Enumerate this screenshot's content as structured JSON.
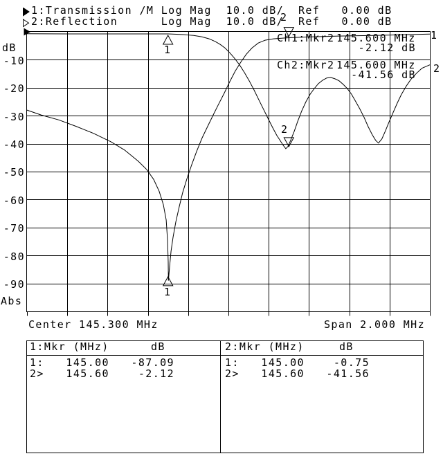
{
  "colors": {
    "fg": "#000000",
    "bg": "#ffffff"
  },
  "header": {
    "line1": {
      "icon": "filled-right-triangle",
      "text": "1:Transmission /M Log Mag  10.0 dB/  Ref   0.00 dB"
    },
    "line2": {
      "icon": "hollow-right-triangle",
      "text": "2:Reflection      Log Mag  10.0 dB/  Ref   0.00 dB"
    }
  },
  "y_axis": {
    "unit": "dB",
    "abs": "Abs",
    "ticks": [
      "-10",
      "-20",
      "-30",
      "-40",
      "-50",
      "-60",
      "-70",
      "-80",
      "-90"
    ]
  },
  "readout": {
    "rows": [
      {
        "ch": "Ch1:Mkr2",
        "freq": "145.600 MHz",
        "value": "-2.12 dB"
      },
      {
        "ch": "Ch2:Mkr2",
        "freq": "145.600 MHz",
        "value": "-41.56 dB"
      }
    ]
  },
  "trace_end_labels": {
    "trace1": "1",
    "trace2": "2"
  },
  "footer": {
    "center": "Center 145.300 MHz",
    "span": "Span 2.000 MHz"
  },
  "marker_table": {
    "left": {
      "title": "1:Mkr (MHz)",
      "unit": "dB",
      "rows": [
        [
          "1:",
          "145.00",
          "-87.09"
        ],
        [
          "2>",
          "145.60",
          "-2.12"
        ]
      ]
    },
    "right": {
      "title": "2:Mkr (MHz)",
      "unit": "dB",
      "rows": [
        [
          "1:",
          "145.00",
          "-0.75"
        ],
        [
          "2>",
          "145.60",
          "-41.56"
        ]
      ]
    }
  },
  "chart_data": {
    "type": "line",
    "title": "Transmission / Reflection Log Mag",
    "x_center_mhz": 145.3,
    "x_span_mhz": 2.0,
    "x_range_mhz": [
      144.3,
      146.3
    ],
    "y_ref_db": 0.0,
    "y_scale_db_per_div": 10.0,
    "y_range_db": [
      0,
      -100
    ],
    "grid": {
      "x_divs": 10,
      "y_divs": 10,
      "grid_on": true
    },
    "series": [
      {
        "name": "Transmission",
        "channel": 1,
        "points": [
          [
            144.3,
            -28.0
          ],
          [
            144.372,
            -29.8
          ],
          [
            144.458,
            -31.5
          ],
          [
            144.544,
            -33.8
          ],
          [
            144.63,
            -36.3
          ],
          [
            144.716,
            -39.3
          ],
          [
            144.785,
            -42.3
          ],
          [
            144.853,
            -46.3
          ],
          [
            144.895,
            -49.3
          ],
          [
            144.929,
            -52.8
          ],
          [
            144.956,
            -57.0
          ],
          [
            144.977,
            -61.8
          ],
          [
            144.991,
            -67.3
          ],
          [
            144.998,
            -74.8
          ],
          [
            145.001,
            -82.3
          ],
          [
            145.002,
            -89.0
          ],
          [
            145.008,
            -84.0
          ],
          [
            145.015,
            -78.5
          ],
          [
            145.025,
            -73.5
          ],
          [
            145.039,
            -68.0
          ],
          [
            145.056,
            -62.5
          ],
          [
            145.073,
            -57.5
          ],
          [
            145.094,
            -52.5
          ],
          [
            145.118,
            -47.5
          ],
          [
            145.142,
            -42.8
          ],
          [
            145.169,
            -38.0
          ],
          [
            145.197,
            -33.8
          ],
          [
            145.224,
            -29.8
          ],
          [
            145.252,
            -25.8
          ],
          [
            145.28,
            -21.8
          ],
          [
            145.307,
            -17.8
          ],
          [
            145.334,
            -14.0
          ],
          [
            145.362,
            -10.8
          ],
          [
            145.389,
            -8.0
          ],
          [
            145.417,
            -5.8
          ],
          [
            145.448,
            -4.0
          ],
          [
            145.482,
            -3.0
          ],
          [
            145.523,
            -2.5
          ],
          [
            145.599,
            -2.1
          ],
          [
            145.712,
            -1.8
          ],
          [
            145.849,
            -1.5
          ],
          [
            146.021,
            -1.3
          ],
          [
            146.193,
            -1.0
          ],
          [
            146.3,
            -0.8
          ]
        ]
      },
      {
        "name": "Reflection",
        "channel": 2,
        "points": [
          [
            144.3,
            -0.7
          ],
          [
            144.5,
            -0.75
          ],
          [
            144.7,
            -0.75
          ],
          [
            144.9,
            -0.75
          ],
          [
            145.001,
            -0.75
          ],
          [
            145.077,
            -1.0
          ],
          [
            145.128,
            -1.3
          ],
          [
            145.169,
            -1.8
          ],
          [
            145.204,
            -2.5
          ],
          [
            145.235,
            -3.5
          ],
          [
            145.259,
            -4.5
          ],
          [
            145.283,
            -5.8
          ],
          [
            145.307,
            -7.5
          ],
          [
            145.331,
            -9.5
          ],
          [
            145.355,
            -11.8
          ],
          [
            145.379,
            -14.5
          ],
          [
            145.403,
            -17.5
          ],
          [
            145.427,
            -20.8
          ],
          [
            145.451,
            -24.3
          ],
          [
            145.475,
            -27.8
          ],
          [
            145.499,
            -31.3
          ],
          [
            145.52,
            -34.3
          ],
          [
            145.54,
            -37.0
          ],
          [
            145.558,
            -39.0
          ],
          [
            145.571,
            -40.5
          ],
          [
            145.585,
            -41.8
          ],
          [
            145.596,
            -41.0
          ],
          [
            145.609,
            -38.8
          ],
          [
            145.627,
            -35.5
          ],
          [
            145.644,
            -32.0
          ],
          [
            145.664,
            -28.3
          ],
          [
            145.685,
            -25.0
          ],
          [
            145.706,
            -22.3
          ],
          [
            145.726,
            -20.3
          ],
          [
            145.747,
            -18.5
          ],
          [
            145.768,
            -17.3
          ],
          [
            145.788,
            -16.5
          ],
          [
            145.808,
            -16.3
          ],
          [
            145.829,
            -16.8
          ],
          [
            145.849,
            -17.5
          ],
          [
            145.87,
            -18.8
          ],
          [
            145.89,
            -20.3
          ],
          [
            145.911,
            -22.3
          ],
          [
            145.931,
            -24.8
          ],
          [
            145.952,
            -27.5
          ],
          [
            145.973,
            -30.5
          ],
          [
            145.993,
            -33.8
          ],
          [
            146.014,
            -36.8
          ],
          [
            146.031,
            -38.8
          ],
          [
            146.045,
            -39.8
          ],
          [
            146.062,
            -38.3
          ],
          [
            146.079,
            -35.5
          ],
          [
            146.096,
            -32.5
          ],
          [
            146.117,
            -29.0
          ],
          [
            146.138,
            -25.5
          ],
          [
            146.158,
            -22.5
          ],
          [
            146.182,
            -19.5
          ],
          [
            146.206,
            -17.0
          ],
          [
            146.234,
            -14.8
          ],
          [
            146.261,
            -13.0
          ],
          [
            146.3,
            -11.8
          ]
        ]
      }
    ],
    "markers": [
      {
        "channel": 1,
        "n": "1",
        "mhz": 145.0,
        "db": -87.09,
        "dir": "up"
      },
      {
        "channel": 1,
        "n": "2",
        "mhz": 145.6,
        "db": -2.12,
        "dir": "down"
      },
      {
        "channel": 2,
        "n": "1",
        "mhz": 145.0,
        "db": -0.75,
        "dir": "up"
      },
      {
        "channel": 2,
        "n": "2",
        "mhz": 145.6,
        "db": -41.56,
        "dir": "down"
      }
    ]
  }
}
